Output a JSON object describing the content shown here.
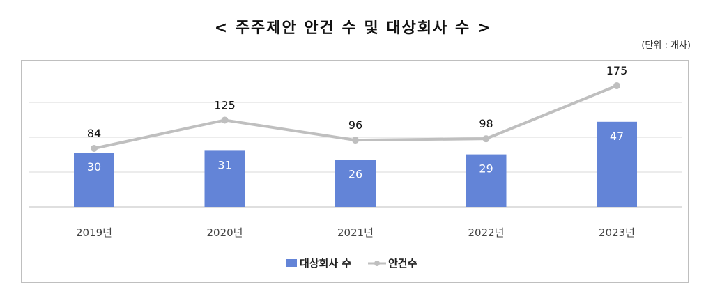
{
  "title": "< 주주제안 안건 수 및 대상회사 수 >",
  "unit_note": "(단위 : 개사)",
  "chart_data": {
    "type": "bar",
    "categories": [
      "2019년",
      "2020년",
      "2021년",
      "2022년",
      "2023년"
    ],
    "series": [
      {
        "name": "대상회사 수",
        "type": "bar",
        "color": "#6384d7",
        "values": [
          30,
          31,
          26,
          29,
          47
        ]
      },
      {
        "name": "안건수",
        "type": "line",
        "color": "#bfbfbf",
        "values": [
          84,
          125,
          96,
          98,
          175
        ]
      }
    ],
    "grid": true,
    "legend_position": "bottom"
  }
}
